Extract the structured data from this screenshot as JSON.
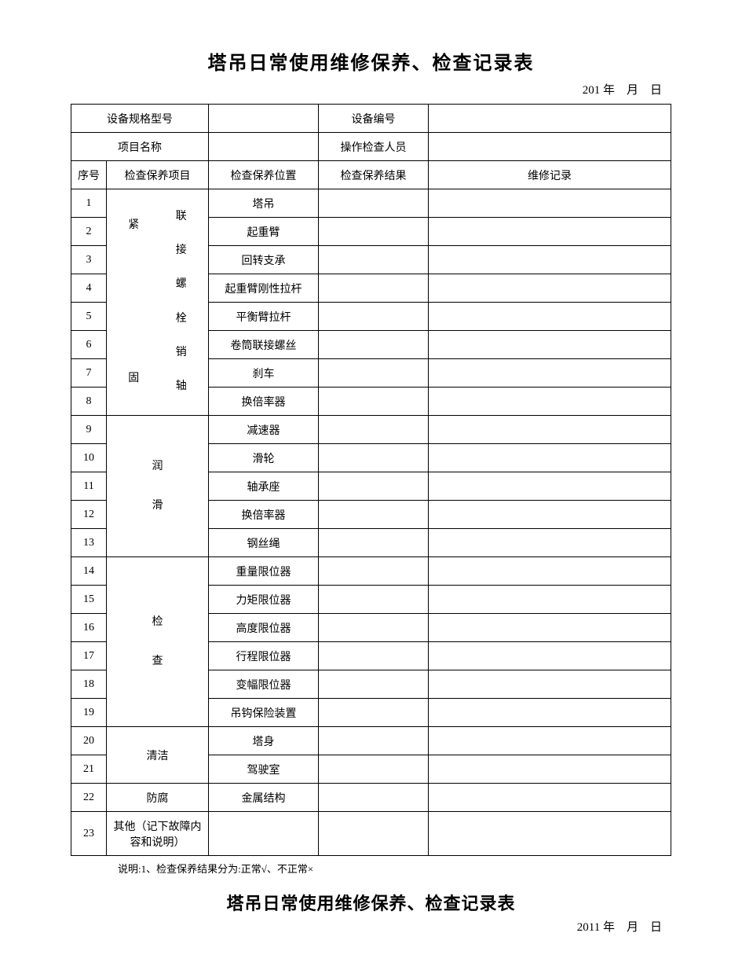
{
  "title": "塔吊日常使用维修保养、检查记录表",
  "date_top": "201 年　月　日",
  "header": {
    "spec_label": "设备规格型号",
    "spec_value": "",
    "dev_no_label": "设备编号",
    "dev_no_value": "",
    "proj_label": "项目名称",
    "proj_value": "",
    "operator_label": "操作检查人员",
    "operator_value": ""
  },
  "columns": {
    "seq": "序号",
    "item": "检查保养项目",
    "pos": "检查保养位置",
    "res": "检查保养结果",
    "rec": "维修记录"
  },
  "group1": {
    "left_col": "紧固",
    "right_col": "联接螺栓销轴",
    "rows": [
      {
        "seq": "1",
        "pos": "塔吊"
      },
      {
        "seq": "2",
        "pos": "起重臂"
      },
      {
        "seq": "3",
        "pos": "回转支承"
      },
      {
        "seq": "4",
        "pos": "起重臂刚性拉杆"
      },
      {
        "seq": "5",
        "pos": "平衡臂拉杆"
      },
      {
        "seq": "6",
        "pos": "卷筒联接螺丝"
      },
      {
        "seq": "7",
        "pos": "刹车"
      },
      {
        "seq": "8",
        "pos": "换倍率器"
      }
    ]
  },
  "group2": {
    "label": "润滑",
    "rows": [
      {
        "seq": "9",
        "pos": "减速器"
      },
      {
        "seq": "10",
        "pos": "滑轮"
      },
      {
        "seq": "11",
        "pos": "轴承座"
      },
      {
        "seq": "12",
        "pos": "换倍率器"
      },
      {
        "seq": "13",
        "pos": "钢丝绳"
      }
    ]
  },
  "group3": {
    "label": "检查",
    "rows": [
      {
        "seq": "14",
        "pos": "重量限位器"
      },
      {
        "seq": "15",
        "pos": "力矩限位器"
      },
      {
        "seq": "16",
        "pos": "高度限位器"
      },
      {
        "seq": "17",
        "pos": "行程限位器"
      },
      {
        "seq": "18",
        "pos": "变幅限位器"
      },
      {
        "seq": "19",
        "pos": "吊钩保险装置"
      }
    ]
  },
  "group4": {
    "label": "清洁",
    "rows": [
      {
        "seq": "20",
        "pos": "塔身"
      },
      {
        "seq": "21",
        "pos": "驾驶室"
      }
    ]
  },
  "group5": {
    "label": "防腐",
    "rows": [
      {
        "seq": "22",
        "pos": "金属结构"
      }
    ]
  },
  "group6": {
    "seq": "23",
    "label": "其他（记下故障内容和说明）"
  },
  "note": "说明:1、检查保养结果分为:正常√、不正常×",
  "title2": "塔吊日常使用维修保养、检查记录表",
  "date_bottom": "2011 年　月　日"
}
